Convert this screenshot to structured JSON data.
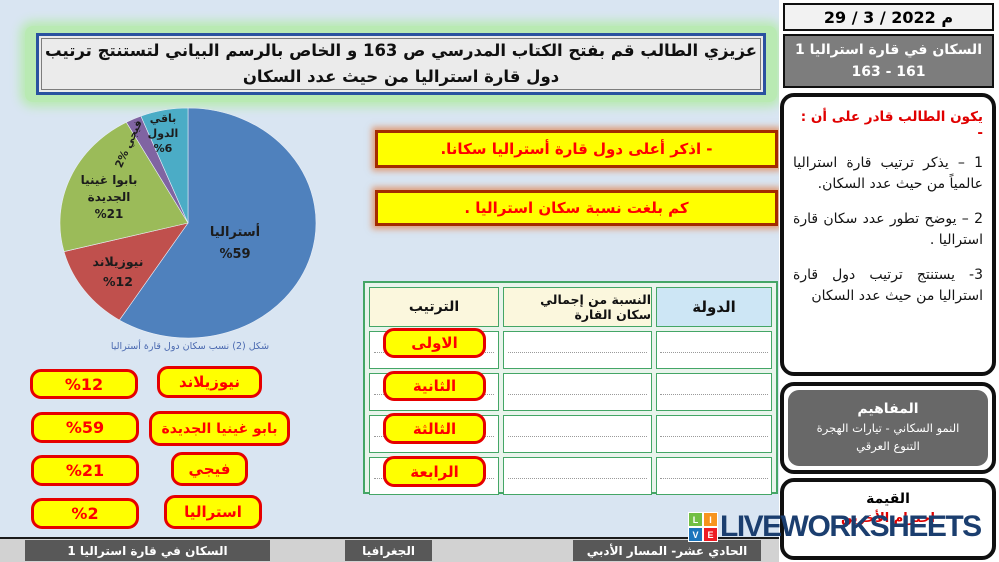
{
  "header": {
    "date": "م 2022 / 3 / 29",
    "instruction_line1": "عزيزي الطالب قم بفتح الكتاب المدرسي ص 163 و الخاص  بالرسم البياني لتستنتج ترتيب",
    "instruction_line2": "دول قارة استراليا من حيث عدد السكان"
  },
  "chart_data": {
    "type": "pie",
    "title": "شكل (2) نسب سكان دول قارة أستراليا",
    "categories": [
      "أستراليا",
      "نيوزيلاند",
      "بابوا غينيا الجديدة",
      "فيجي",
      "باقي الدول"
    ],
    "values": [
      59,
      12,
      21,
      2,
      6
    ],
    "unit": "%",
    "colors": [
      "#4f81bd",
      "#c0504d",
      "#9bbb59",
      "#8064a2",
      "#4bacc6"
    ],
    "slice_labels": [
      {
        "lines": [
          "أستراليا",
          "%59"
        ]
      },
      {
        "lines": [
          "نيوزيلاند",
          "%12"
        ]
      },
      {
        "lines": [
          "بابوا غينيا",
          "الجديدة",
          "%21"
        ]
      },
      {
        "lines": [
          "فيجي %2"
        ]
      },
      {
        "lines": [
          "باقي",
          "الدول",
          "%6"
        ]
      }
    ]
  },
  "questions": {
    "q1": "- اذكر أعلى دول قارة أستراليا سكانا.",
    "q2": "كم بلغت نسبة سكان استراليا ."
  },
  "table": {
    "headers": {
      "country": "الدولة",
      "percentage": "النسبة من إجمالي سكان القارة",
      "rank": "الترتيب"
    },
    "rank_labels": [
      "الاولى",
      "الثانية",
      "الثالثة",
      "الرابعة"
    ]
  },
  "options": {
    "percentages": [
      "%12",
      "%59",
      "%21",
      "%2"
    ],
    "countries": [
      "نيوزيلاند",
      "بابو غينيا الجديدة",
      "فيجي",
      "استراليا"
    ]
  },
  "sidebar": {
    "lesson_title": "السكان في قارة استراليا 1",
    "pages": "163 - 161",
    "objectives_title": "يكون الطالب قادر على أن : -",
    "objectives": [
      "1 – يذكر ترتيب قارة استراليا عالمياً من حيث عدد السكان.",
      "2 – يوضح تطور عدد سكان قارة استراليا .",
      "3- يستنتج ترتيب دول قارة استراليا من حيث عدد السكان"
    ],
    "concepts_title": "المفاهيم",
    "concepts_line1": "النمو السكاني   - تيارات الهجرة",
    "concepts_line2": "التنوع العرقي",
    "value_title": "القيمة",
    "value_text": "احترام الأخرين"
  },
  "footer": {
    "lesson": "السكان في قارة استراليا 1",
    "subject": "الجغرافيا",
    "grade": "الحادي عشر- المسار الأدبي"
  },
  "watermark": {
    "text": "LIVEWORKSHEETS",
    "logo_letters": [
      "L",
      "I",
      "V",
      "E"
    ],
    "logo_colors": [
      "#72bf44",
      "#f7941e",
      "#1c75bc",
      "#ed1c24"
    ]
  }
}
